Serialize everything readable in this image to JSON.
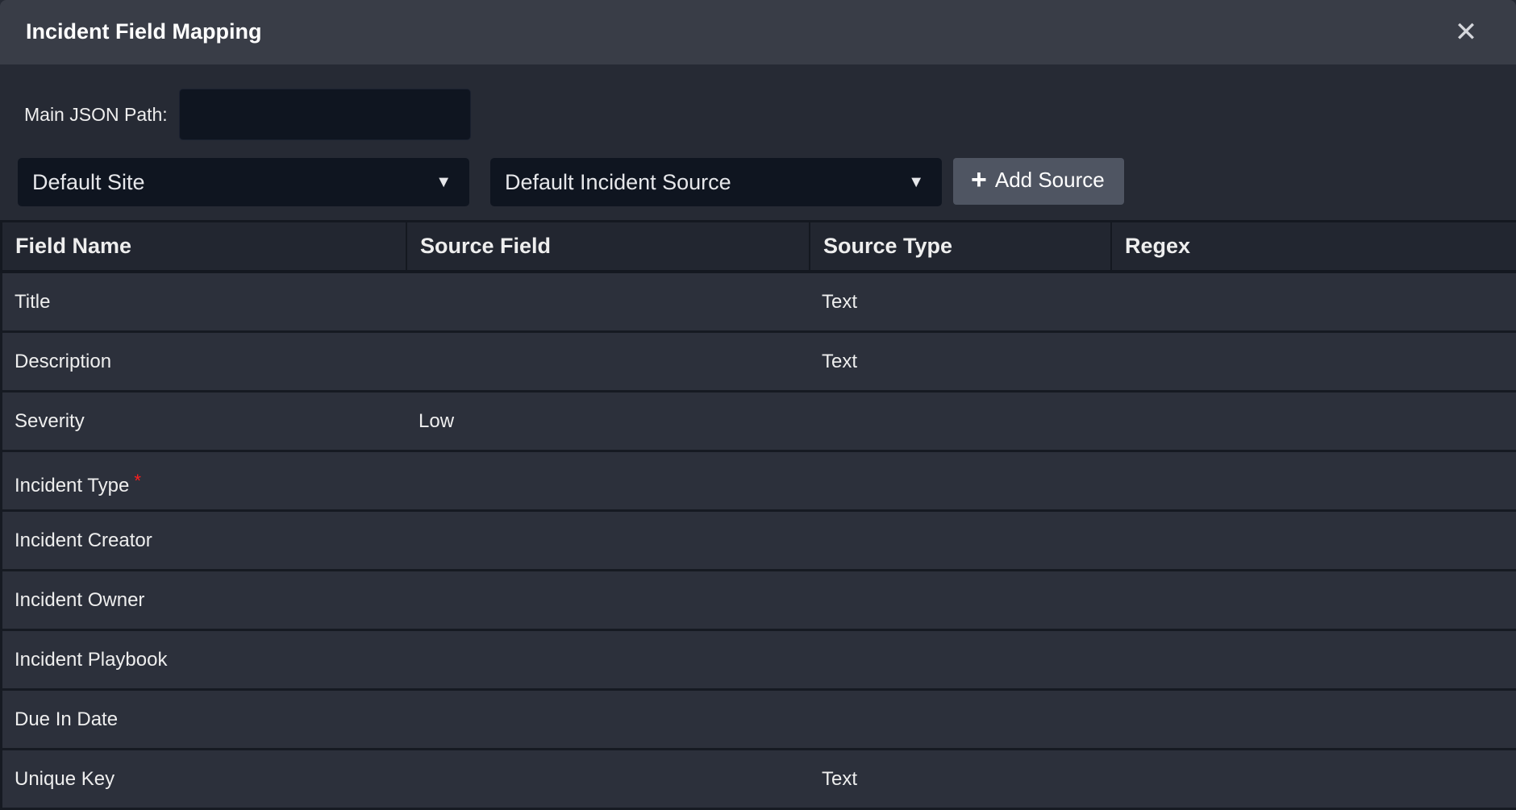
{
  "dialog": {
    "title": "Incident Field Mapping",
    "close_icon": "close-icon"
  },
  "json_path": {
    "label": "Main JSON Path:",
    "value": "",
    "placeholder": ""
  },
  "site_select": {
    "value": "Default Site"
  },
  "source_select": {
    "value": "Default Incident Source"
  },
  "add_source": {
    "label": "Add Source",
    "icon": "plus-icon"
  },
  "table": {
    "headers": [
      "Field Name",
      "Source Field",
      "Source Type",
      "Regex"
    ],
    "rows": [
      {
        "field": "Title",
        "source_field": "",
        "source_type": "Text",
        "regex": ""
      },
      {
        "field": "Description",
        "source_field": "",
        "source_type": "Text",
        "regex": ""
      },
      {
        "field": "Severity",
        "source_field": "Low",
        "source_type": "",
        "regex": ""
      },
      {
        "field": "Incident Type",
        "required": "*",
        "source_field": "",
        "source_type": "",
        "regex": ""
      },
      {
        "field": "Incident Creator",
        "source_field": "",
        "source_type": "",
        "regex": ""
      },
      {
        "field": "Incident Owner",
        "source_field": "",
        "source_type": "",
        "regex": ""
      },
      {
        "field": "Incident Playbook",
        "source_field": "",
        "source_type": "",
        "regex": ""
      },
      {
        "field": "Due In Date",
        "source_field": "",
        "source_type": "",
        "regex": ""
      },
      {
        "field": "Unique Key",
        "source_field": "",
        "source_type": "Text",
        "regex": ""
      }
    ]
  },
  "colors": {
    "header_bg": "#393d47",
    "body_bg": "#262a34",
    "input_bg": "#0f1520",
    "button_bg": "#4f5562",
    "required": "#ff1e1e"
  }
}
